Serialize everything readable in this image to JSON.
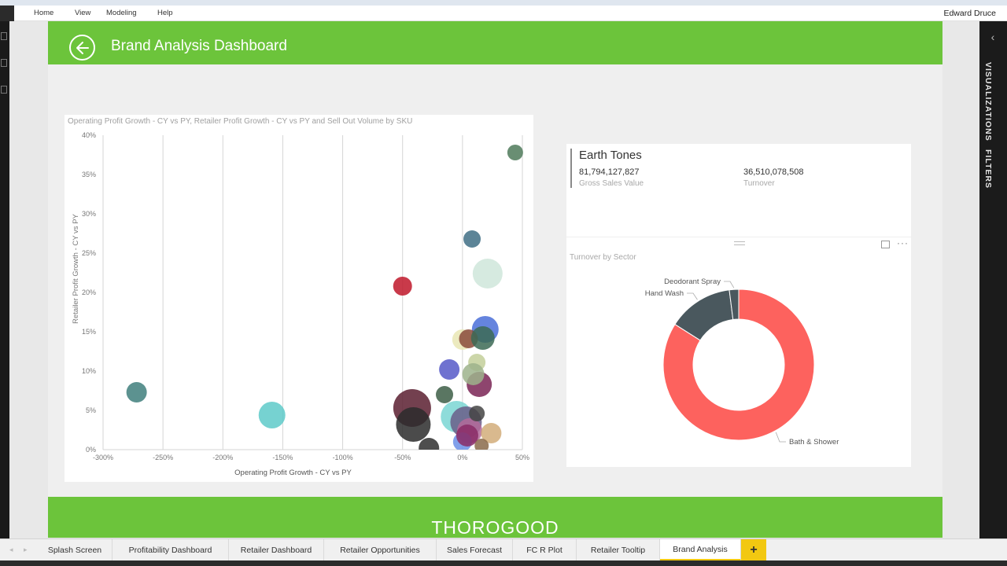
{
  "window": {
    "user": "Edward Druce"
  },
  "ribbon": {
    "menus": [
      "Home",
      "View",
      "Modeling",
      "Help"
    ]
  },
  "right_pane": {
    "tabs": [
      "VISUALIZATIONS",
      "FILTERS"
    ]
  },
  "page": {
    "title": "Brand Analysis Dashboard",
    "brand": "THOROGOOD",
    "header_color": "#6cc43b"
  },
  "scatter": {
    "title": "Operating Profit Growth - CY vs PY, Retailer Profit Growth - CY vs PY and Sell Out Volume by SKU"
  },
  "kpi": {
    "name": "Earth Tones",
    "gross_sales_value": "81,794,127,827",
    "gross_sales_label": "Gross Sales Value",
    "turnover_value": "36,510,078,508",
    "turnover_label": "Turnover"
  },
  "donut": {
    "title": "Turnover by Sector"
  },
  "chart_data": [
    {
      "type": "scatter",
      "title": "Operating Profit Growth - CY vs PY, Retailer Profit Growth - CY vs PY and Sell Out Volume by SKU",
      "xlabel": "Operating Profit Growth - CY vs PY",
      "ylabel": "Retailer Profit Growth - CY vs PY",
      "xlim": [
        -300,
        50
      ],
      "ylim": [
        0,
        40
      ],
      "x_ticks": [
        "-300%",
        "-250%",
        "-200%",
        "-150%",
        "-100%",
        "-50%",
        "0%",
        "50%"
      ],
      "y_ticks": [
        "0%",
        "5%",
        "10%",
        "15%",
        "20%",
        "25%",
        "30%",
        "35%",
        "40%"
      ],
      "grid": "vertical",
      "points": [
        {
          "x": 44,
          "y": 37.8,
          "size": 10,
          "color": "#4f7a5a"
        },
        {
          "x": 8,
          "y": 26.8,
          "size": 11,
          "color": "#3f6f85"
        },
        {
          "x": 21,
          "y": 22.4,
          "size": 19,
          "color": "#cfe6da"
        },
        {
          "x": -50,
          "y": 20.8,
          "size": 12,
          "color": "#c0172a"
        },
        {
          "x": 19,
          "y": 15.3,
          "size": 17,
          "color": "#4a6fd8"
        },
        {
          "x": 0,
          "y": 14.0,
          "size": 13,
          "color": "#e9e6b4"
        },
        {
          "x": 5,
          "y": 14.1,
          "size": 12,
          "color": "#8a4a3a"
        },
        {
          "x": 17,
          "y": 14.2,
          "size": 15,
          "color": "#3c6a55"
        },
        {
          "x": -11,
          "y": 10.2,
          "size": 13,
          "color": "#5659c8"
        },
        {
          "x": 12,
          "y": 11.1,
          "size": 11,
          "color": "#c3cf9a"
        },
        {
          "x": 14,
          "y": 8.3,
          "size": 16,
          "color": "#7a2555"
        },
        {
          "x": 9,
          "y": 9.6,
          "size": 14,
          "color": "#9db38c"
        },
        {
          "x": -272,
          "y": 7.3,
          "size": 13,
          "color": "#3f7f7c"
        },
        {
          "x": -15,
          "y": 7.0,
          "size": 11,
          "color": "#3d5e46"
        },
        {
          "x": -159,
          "y": 4.4,
          "size": 17,
          "color": "#5ecac9"
        },
        {
          "x": -42,
          "y": 5.3,
          "size": 24,
          "color": "#5a1f30"
        },
        {
          "x": -41,
          "y": 3.2,
          "size": 22,
          "color": "#2b2b2b"
        },
        {
          "x": -5,
          "y": 4.2,
          "size": 20,
          "color": "#7ad6d4"
        },
        {
          "x": 3,
          "y": 3.5,
          "size": 20,
          "color": "#6a5e88"
        },
        {
          "x": 6,
          "y": 2.4,
          "size": 16,
          "color": "#b36a9a"
        },
        {
          "x": 12,
          "y": 4.6,
          "size": 10,
          "color": "#444444"
        },
        {
          "x": 24,
          "y": 2.1,
          "size": 13,
          "color": "#d2ad7a"
        },
        {
          "x": 0,
          "y": 1.0,
          "size": 12,
          "color": "#6b8fe6"
        },
        {
          "x": 4,
          "y": 1.8,
          "size": 14,
          "color": "#8a2b66"
        },
        {
          "x": -28,
          "y": 0.2,
          "size": 13,
          "color": "#2f2f2f"
        },
        {
          "x": 16,
          "y": 0.5,
          "size": 9,
          "color": "#8a6a4a"
        }
      ]
    },
    {
      "type": "pie",
      "title": "Turnover by Sector",
      "donut": true,
      "labels": [
        "Bath & Shower",
        "Hand Wash",
        "Deodorant Spray"
      ],
      "values": [
        84,
        14,
        2
      ],
      "colors": [
        "#fd625e",
        "#4a585e",
        "#4a585e"
      ]
    }
  ],
  "tabs": {
    "items": [
      "Splash Screen",
      "Profitability Dashboard",
      "Retailer Dashboard",
      "Retailer Opportunities",
      "Sales Forecast",
      "FC R Plot",
      "Retailer Tooltip",
      "Brand Analysis"
    ],
    "active": "Brand Analysis",
    "add": "+"
  }
}
